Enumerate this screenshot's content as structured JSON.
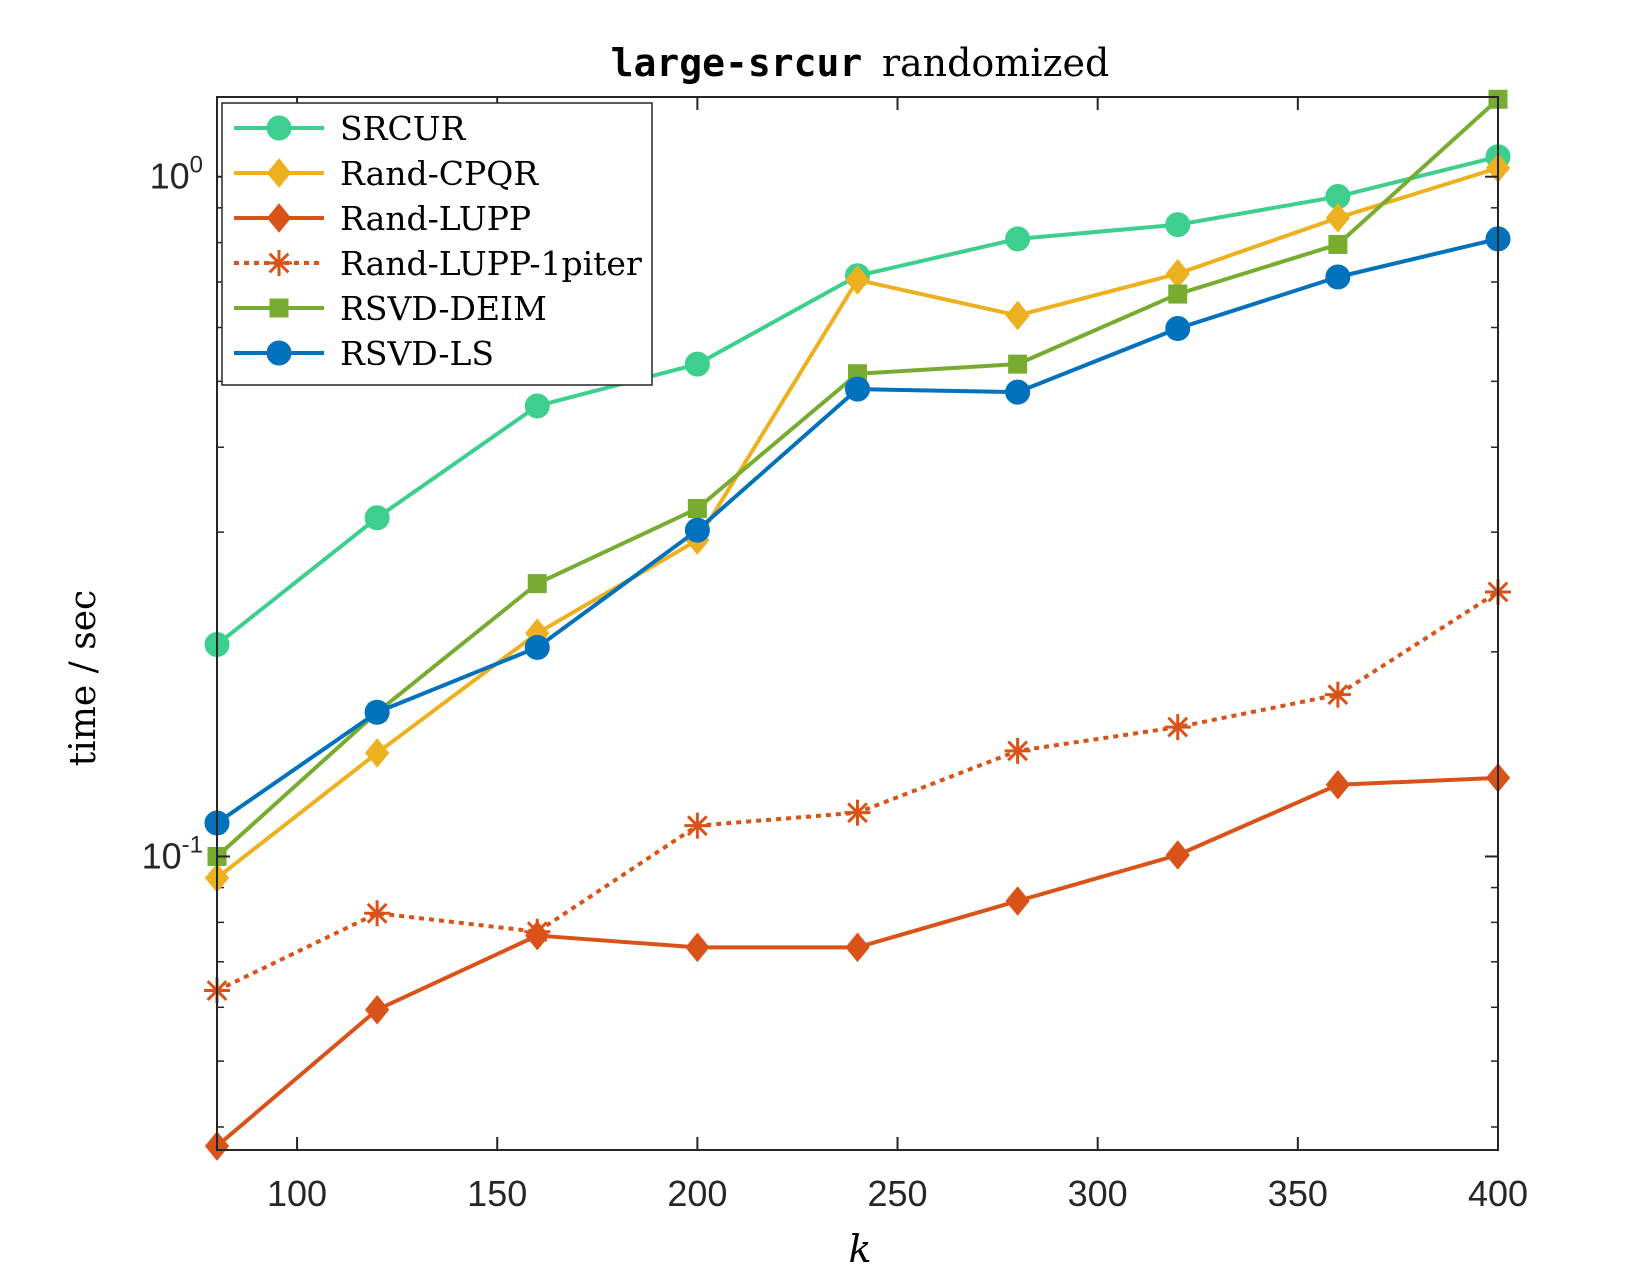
{
  "chart_data": {
    "type": "line",
    "title_code": "large-srcur",
    "title_text": "randomized",
    "xlabel": "k",
    "ylabel": "time / sec",
    "xlim": [
      80,
      400
    ],
    "ylim": [
      0.037,
      1.31
    ],
    "yscale": "log",
    "x_ticks": [
      100,
      150,
      200,
      250,
      300,
      350,
      400
    ],
    "x_tick_labels": [
      "100",
      "150",
      "200",
      "250",
      "300",
      "350",
      "400"
    ],
    "y_major_ticks": [
      0.1,
      1
    ],
    "y_tick_labels": [
      {
        "base": "10",
        "exp": "-1"
      },
      {
        "base": "10",
        "exp": "0"
      }
    ],
    "grid": false,
    "legend_position": "top-left",
    "x": [
      80,
      120,
      160,
      200,
      240,
      280,
      320,
      360,
      400
    ],
    "series": [
      {
        "name": "SRCUR",
        "color": "#3ccf8e",
        "marker": "circle",
        "dash": false,
        "values": [
          0.205,
          0.315,
          0.46,
          0.53,
          0.715,
          0.81,
          0.85,
          0.935,
          1.07
        ]
      },
      {
        "name": "Rand-CPQR",
        "color": "#edb120",
        "marker": "diamond",
        "dash": false,
        "values": [
          0.093,
          0.142,
          0.213,
          0.292,
          0.705,
          0.625,
          0.72,
          0.87,
          1.03
        ]
      },
      {
        "name": "Rand-LUPP",
        "color": "#d95319",
        "marker": "diamond",
        "dash": false,
        "values": [
          0.0375,
          0.0595,
          0.0765,
          0.0735,
          0.0735,
          0.086,
          0.1005,
          0.1275,
          0.1305
        ]
      },
      {
        "name": "Rand-LUPP-1piter",
        "color": "#d95319",
        "marker": "asterisk",
        "dash": true,
        "values": [
          0.0635,
          0.0825,
          0.0775,
          0.111,
          0.116,
          0.143,
          0.155,
          0.173,
          0.245
        ]
      },
      {
        "name": "RSVD-DEIM",
        "color": "#77ac30",
        "marker": "square",
        "dash": false,
        "values": [
          0.1,
          0.163,
          0.252,
          0.325,
          0.513,
          0.53,
          0.672,
          0.795,
          1.3
        ]
      },
      {
        "name": "RSVD-LS",
        "color": "#0072bd",
        "marker": "circle",
        "dash": false,
        "values": [
          0.112,
          0.163,
          0.203,
          0.302,
          0.487,
          0.482,
          0.598,
          0.712,
          0.81
        ]
      }
    ]
  }
}
